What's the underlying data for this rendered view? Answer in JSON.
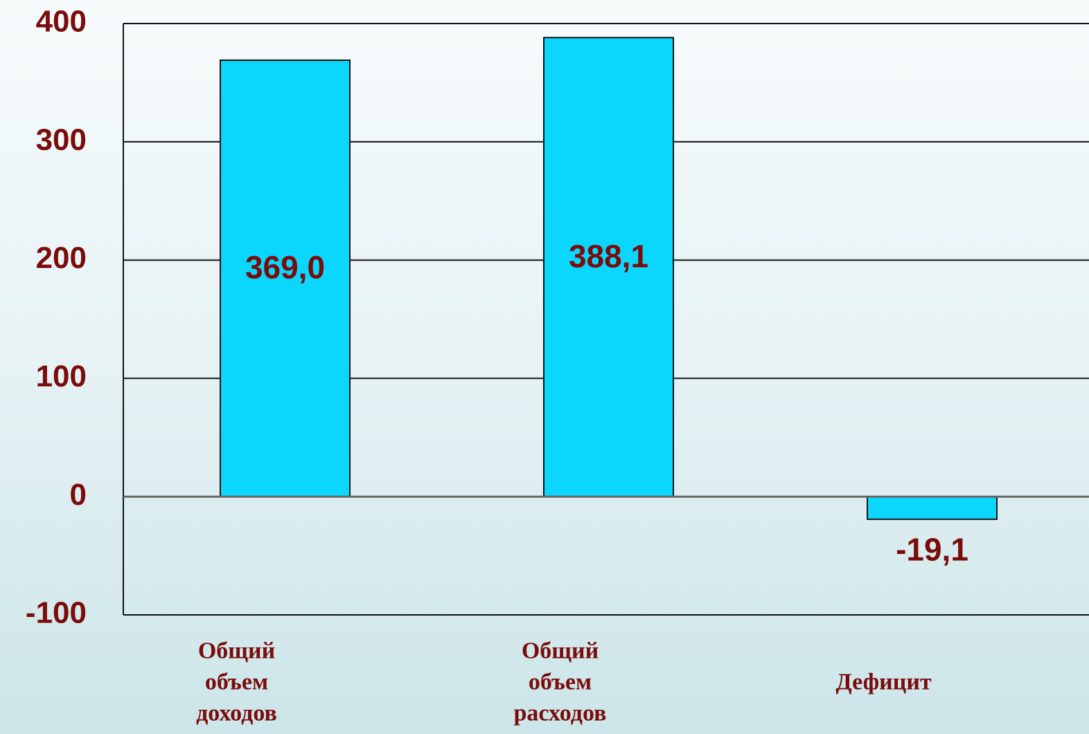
{
  "chart_data": {
    "type": "bar",
    "categories": [
      "Общий объем доходов",
      "Общий объем расходов",
      "Дефицит"
    ],
    "values": [
      369.0,
      388.1,
      -19.1
    ],
    "value_labels": [
      "369,0",
      "388,1",
      "-19,1"
    ],
    "color": "#0bd7fd",
    "ylim": [
      -100,
      400
    ],
    "yticks": [
      -100,
      0,
      100,
      200,
      300,
      400
    ],
    "grid": true
  }
}
